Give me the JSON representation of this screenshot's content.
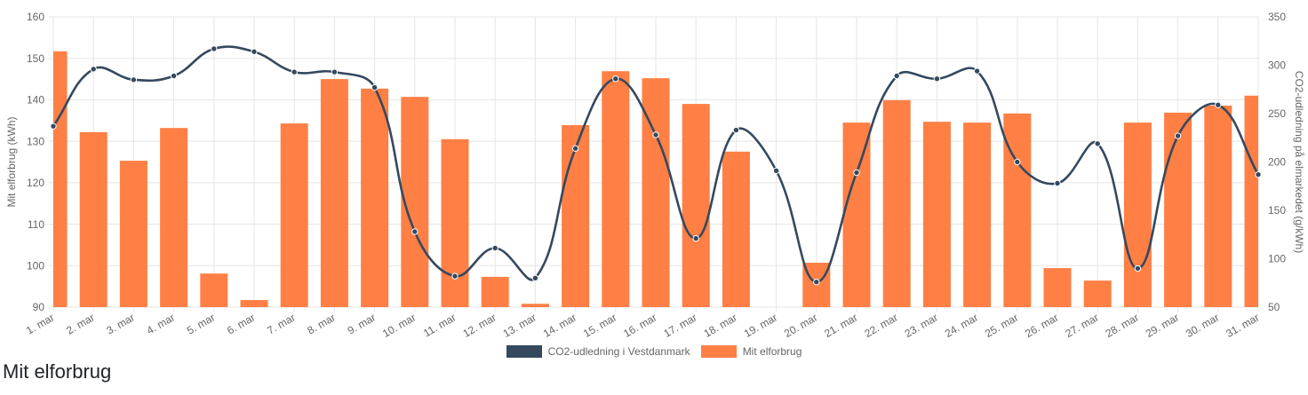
{
  "chart_data": {
    "type": "bar",
    "categories": [
      "1. mar",
      "2. mar",
      "3. mar",
      "4. mar",
      "5. mar",
      "6. mar",
      "7. mar",
      "8. mar",
      "9. mar",
      "10. mar",
      "11. mar",
      "12. mar",
      "13. mar",
      "14. mar",
      "15. mar",
      "16. mar",
      "17. mar",
      "18. mar",
      "19. mar",
      "20. mar",
      "21. mar",
      "22. mar",
      "23. mar",
      "24. mar",
      "25. mar",
      "26. mar",
      "27. mar",
      "28. mar",
      "29. mar",
      "30. mar",
      "31. mar"
    ],
    "series": [
      {
        "name": "CO2-udledning i Vestdanmark",
        "type": "line",
        "axis": "right",
        "color": "#34495e",
        "values": [
          237,
          296,
          285,
          289,
          317,
          314,
          293,
          293,
          277,
          128,
          82,
          111,
          80,
          214,
          286,
          228,
          121,
          233,
          191,
          76,
          189,
          289,
          286,
          294,
          200,
          178,
          219,
          90,
          227,
          259,
          187
        ]
      },
      {
        "name": "Mit elforbrug",
        "type": "bar",
        "axis": "left",
        "color": "#ff7f45",
        "values": [
          151.7,
          132.2,
          125.3,
          133.2,
          98.1,
          91.7,
          134.3,
          145.0,
          142.7,
          140.7,
          130.5,
          97.3,
          90.8,
          133.9,
          146.9,
          145.2,
          139.0,
          127.5,
          null,
          100.7,
          134.5,
          139.9,
          134.7,
          134.5,
          136.7,
          99.4,
          96.4,
          134.5,
          136.9,
          138.6,
          141.0
        ]
      }
    ],
    "ylabel": "Mit elforbrug (kWh)",
    "ylabel_right": "CO2-udledning på elmarkedet (g/kWh)",
    "ylim": [
      90,
      160
    ],
    "ylim_right": [
      50,
      350
    ],
    "yticks": [
      90,
      100,
      110,
      120,
      130,
      140,
      150,
      160
    ],
    "yticks_right": [
      50,
      100,
      150,
      200,
      250,
      300,
      350
    ],
    "grid": true,
    "legend": "bottom-center",
    "line_style": "smooth"
  },
  "heading": "Mit elforbrug",
  "colors": {
    "grid": "#e5e5e5",
    "tick_text": "#666666",
    "point_stroke": "#ffffff"
  }
}
